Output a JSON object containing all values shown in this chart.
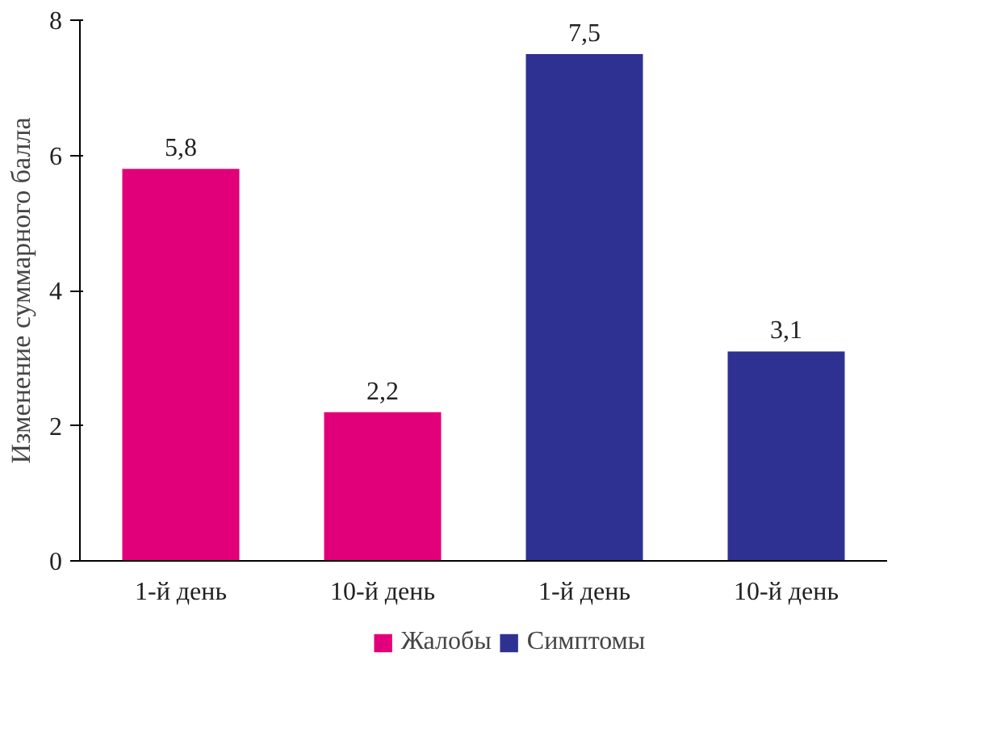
{
  "chart_data": {
    "type": "bar",
    "ylabel": "Изменение суммарного балла",
    "categories": [
      "1-й день",
      "10-й день",
      "1-й день",
      "10-й день"
    ],
    "series": [
      {
        "name": "Жалобы",
        "color": "#e2007a",
        "values": [
          5.8,
          2.2,
          null,
          null
        ],
        "value_labels": [
          "5,8",
          "2,2",
          null,
          null
        ]
      },
      {
        "name": "Симптомы",
        "color": "#2e3192",
        "values": [
          null,
          null,
          7.5,
          3.1
        ],
        "value_labels": [
          null,
          null,
          "7,5",
          "3,1"
        ]
      }
    ],
    "ylim": [
      0,
      8
    ],
    "yticks": [
      0,
      2,
      4,
      6,
      8
    ],
    "grid": false,
    "legend": "bottom"
  }
}
